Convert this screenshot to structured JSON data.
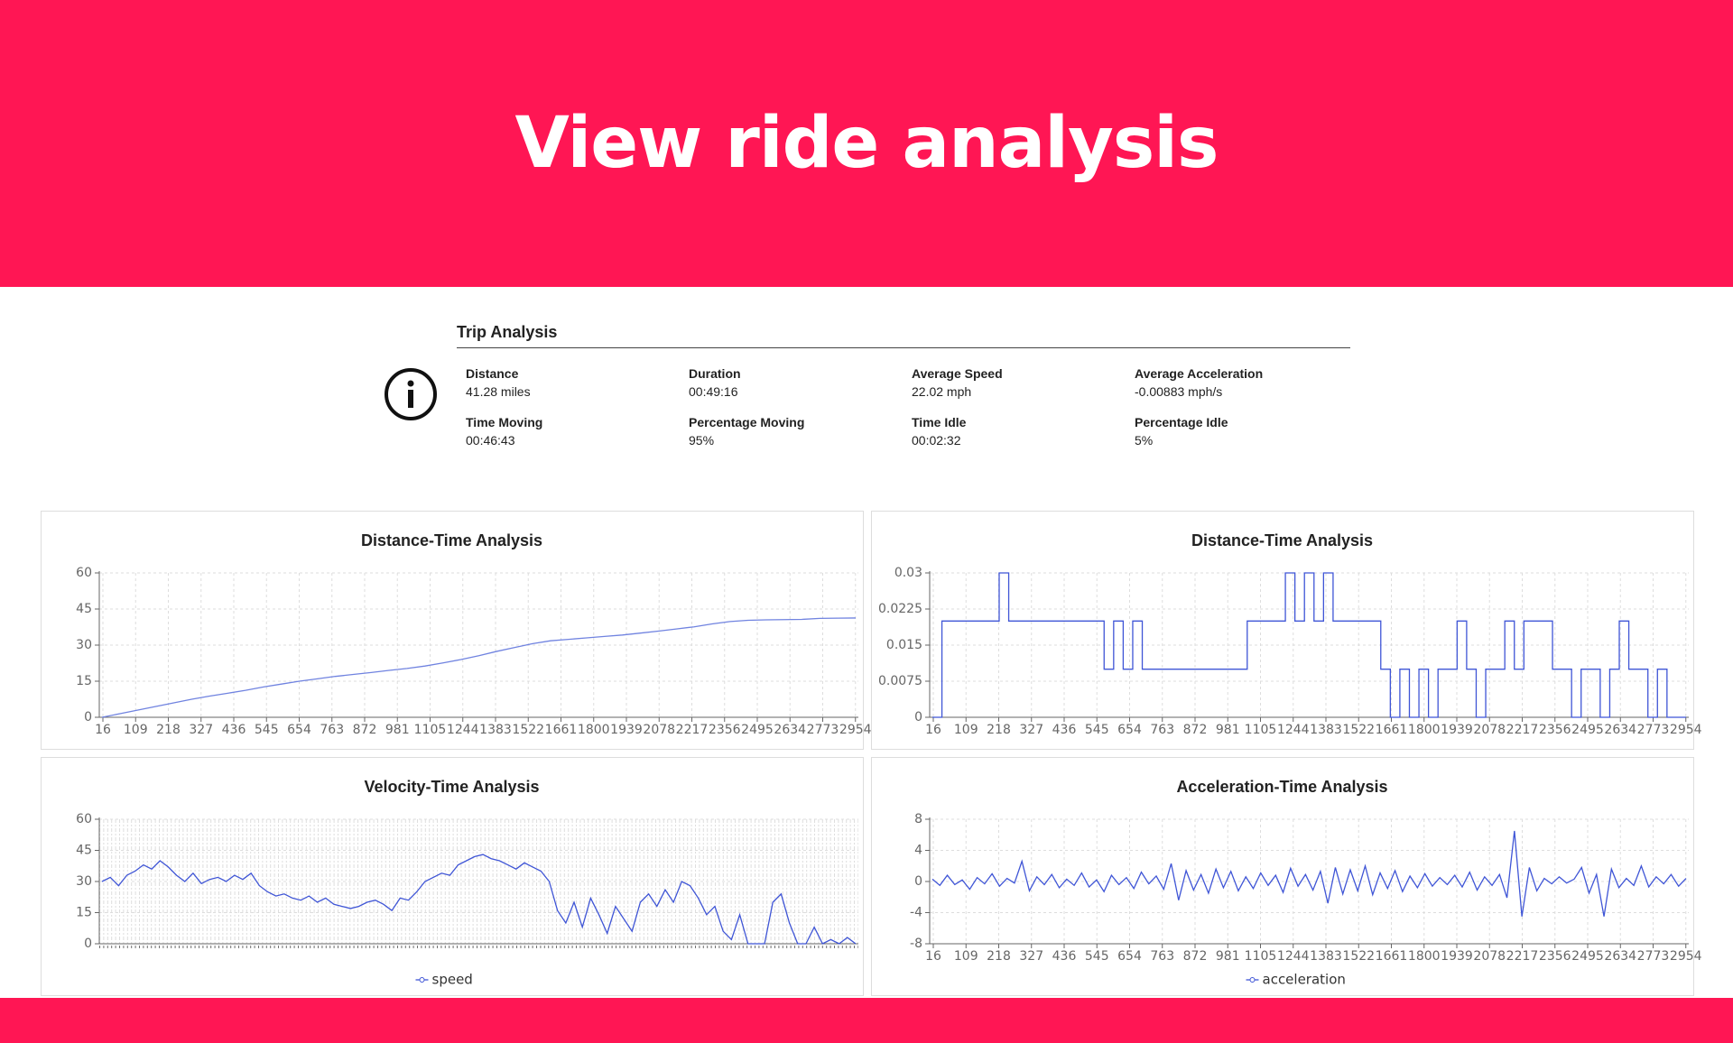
{
  "header": {
    "title": "View ride analysis"
  },
  "trip_analysis": {
    "title": "Trip Analysis",
    "stats": [
      {
        "label": "Distance",
        "value": "41.28 miles"
      },
      {
        "label": "Duration",
        "value": "00:49:16"
      },
      {
        "label": "Average Speed",
        "value": "22.02 mph"
      },
      {
        "label": "Average Acceleration",
        "value": "-0.00883 mph/s"
      },
      {
        "label": "Time Moving",
        "value": "00:46:43"
      },
      {
        "label": "Percentage Moving",
        "value": "95%"
      },
      {
        "label": "Time Idle",
        "value": "00:02:32"
      },
      {
        "label": "Percentage Idle",
        "value": "5%"
      }
    ]
  },
  "chart_data": [
    {
      "type": "line",
      "title": "Distance-Time Analysis",
      "x_labels": [
        16,
        109,
        218,
        327,
        436,
        545,
        654,
        763,
        872,
        981,
        1105,
        1244,
        1383,
        1522,
        1661,
        1800,
        1939,
        2078,
        2217,
        2356,
        2495,
        2634,
        2773,
        2954
      ],
      "ylim": [
        0,
        60
      ],
      "yticks": [
        0,
        15,
        30,
        45,
        60
      ],
      "grid": true,
      "legend": false,
      "series": [
        {
          "color": "#7083e0",
          "values": [
            0,
            1.5,
            3,
            4.5,
            6,
            7.5,
            8.8,
            10,
            11.2,
            12.6,
            13.8,
            15,
            16,
            17,
            17.8,
            18.6,
            19.5,
            20.3,
            21.3,
            22.6,
            24,
            25.6,
            27.4,
            29,
            30.6,
            31.8,
            32.4,
            33,
            33.6,
            34.2,
            35,
            35.8,
            36.7,
            37.6,
            38.8,
            39.8,
            40.3,
            40.5,
            40.6,
            40.7,
            41.1,
            41.2,
            41.28
          ]
        }
      ]
    },
    {
      "type": "step",
      "title": "Distance-Time Analysis",
      "x_labels": [
        16,
        109,
        218,
        327,
        436,
        545,
        654,
        763,
        872,
        981,
        1105,
        1244,
        1383,
        1522,
        1661,
        1800,
        1939,
        2078,
        2217,
        2356,
        2495,
        2634,
        2773,
        2954
      ],
      "ylim": [
        0,
        0.03
      ],
      "yticks": [
        0,
        0.0075,
        0.015,
        0.0225,
        0.03
      ],
      "grid": true,
      "legend": false,
      "series": [
        {
          "color": "#3f55d6",
          "values": [
            0,
            0.02,
            0.02,
            0.02,
            0.02,
            0.02,
            0.02,
            0.03,
            0.02,
            0.02,
            0.02,
            0.02,
            0.02,
            0.02,
            0.02,
            0.02,
            0.02,
            0.02,
            0.01,
            0.02,
            0.01,
            0.02,
            0.01,
            0.01,
            0.01,
            0.01,
            0.01,
            0.01,
            0.01,
            0.01,
            0.01,
            0.01,
            0.01,
            0.02,
            0.02,
            0.02,
            0.02,
            0.03,
            0.02,
            0.03,
            0.02,
            0.03,
            0.02,
            0.02,
            0.02,
            0.02,
            0.02,
            0.01,
            0,
            0.01,
            0,
            0.01,
            0,
            0.01,
            0.01,
            0.02,
            0.01,
            0,
            0.01,
            0.01,
            0.02,
            0.01,
            0.02,
            0.02,
            0.02,
            0.01,
            0.01,
            0,
            0.01,
            0.01,
            0,
            0.01,
            0.02,
            0.01,
            0.01,
            0,
            0.01,
            0,
            0,
            0
          ]
        }
      ]
    },
    {
      "type": "line",
      "title": "Velocity-Time Analysis",
      "ylim": [
        0,
        60
      ],
      "yticks": [
        0,
        15,
        30,
        45,
        60
      ],
      "grid": true,
      "legend": true,
      "series": [
        {
          "name": "speed",
          "color": "#3f55d6",
          "values": [
            30,
            32,
            28,
            33,
            35,
            38,
            36,
            40,
            37,
            33,
            30,
            34,
            29,
            31,
            32,
            30,
            33,
            31,
            34,
            28,
            25,
            23,
            24,
            22,
            21,
            23,
            20,
            22,
            19,
            18,
            17,
            18,
            20,
            21,
            19,
            16,
            22,
            21,
            25,
            30,
            32,
            34,
            33,
            38,
            40,
            42,
            43,
            41,
            40,
            38,
            36,
            39,
            37,
            35,
            30,
            16,
            10,
            20,
            8,
            22,
            14,
            5,
            18,
            12,
            6,
            20,
            24,
            18,
            26,
            20,
            30,
            28,
            22,
            14,
            18,
            6,
            2,
            14,
            0,
            0,
            0,
            20,
            24,
            10,
            0,
            0,
            8,
            0,
            2,
            0,
            3,
            0
          ]
        }
      ]
    },
    {
      "type": "line",
      "title": "Acceleration-Time Analysis",
      "x_labels": [
        16,
        109,
        218,
        327,
        436,
        545,
        654,
        763,
        872,
        981,
        1105,
        1244,
        1383,
        1522,
        1661,
        1800,
        1939,
        2078,
        2217,
        2356,
        2495,
        2634,
        2773,
        2954
      ],
      "ylim": [
        -8,
        8
      ],
      "yticks": [
        -8,
        -4,
        0,
        4,
        8
      ],
      "grid": true,
      "legend": true,
      "series": [
        {
          "name": "acceleration",
          "color": "#3f55d6",
          "values": [
            0.3,
            -0.5,
            0.8,
            -0.4,
            0.2,
            -1,
            0.5,
            -0.3,
            1,
            -0.6,
            0.4,
            -0.2,
            2.6,
            -1.2,
            0.6,
            -0.4,
            0.9,
            -0.8,
            0.3,
            -0.5,
            1.1,
            -0.7,
            0.2,
            -1.3,
            0.8,
            -0.4,
            0.5,
            -0.9,
            1.2,
            -0.3,
            0.7,
            -1,
            2.3,
            -2.4,
            1.4,
            -1.1,
            0.9,
            -1.5,
            1.6,
            -0.8,
            1.3,
            -1.2,
            0.6,
            -0.9,
            1.1,
            -0.5,
            0.8,
            -1.4,
            1.7,
            -0.6,
            0.9,
            -1.1,
            1.3,
            -2.8,
            1.8,
            -1.6,
            1.5,
            -1.2,
            2,
            -1.7,
            1.1,
            -0.9,
            1.4,
            -1.3,
            0.7,
            -0.8,
            1,
            -0.6,
            0.5,
            -0.4,
            0.8,
            -0.7,
            1.2,
            -1.1,
            0.6,
            -0.5,
            0.9,
            -2.1,
            6.5,
            -4.5,
            1.8,
            -1.2,
            0.4,
            -0.3,
            0.6,
            -0.2,
            0.3,
            1.8,
            -1.5,
            0.9,
            -4.5,
            1.6,
            -0.8,
            0.4,
            -0.5,
            2,
            -0.7,
            0.6,
            -0.3,
            0.9,
            -0.6,
            0.4
          ]
        }
      ]
    }
  ]
}
